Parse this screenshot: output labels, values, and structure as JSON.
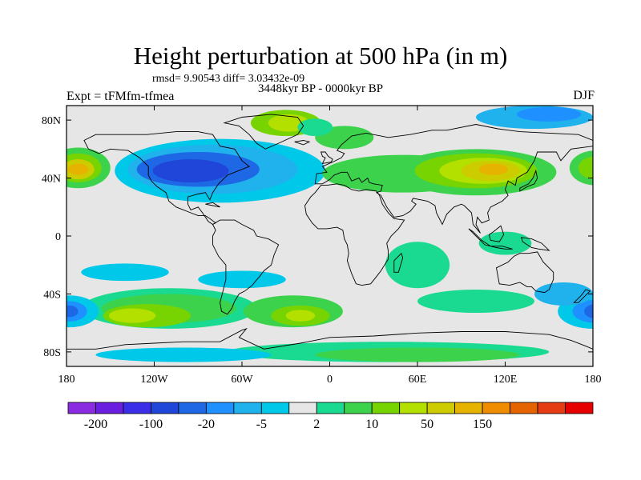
{
  "chart_data": {
    "type": "heatmap",
    "title": "Height perturbation at 500 hPa (in m)",
    "stats_label": "rmsd= 9.90543 diff= 3.03432e-09",
    "period_label": "3448kyr BP - 0000kyr BP",
    "experiment_label": "Expt = tFMfm-tfmea",
    "season_label": "DJF",
    "x_range": [
      -180,
      180
    ],
    "y_range": [
      -90,
      90
    ],
    "x_ticks": [
      {
        "value": -180,
        "label": "180"
      },
      {
        "value": -120,
        "label": "120W"
      },
      {
        "value": -60,
        "label": "60W"
      },
      {
        "value": 0,
        "label": "0"
      },
      {
        "value": 60,
        "label": "60E"
      },
      {
        "value": 120,
        "label": "120E"
      },
      {
        "value": 180,
        "label": "180"
      }
    ],
    "y_ticks": [
      {
        "value": 80,
        "label": "80N"
      },
      {
        "value": 40,
        "label": "40N"
      },
      {
        "value": 0,
        "label": "0"
      },
      {
        "value": -40,
        "label": "40S"
      },
      {
        "value": -80,
        "label": "80S"
      }
    ],
    "colorbar": {
      "colors": [
        "#8a2be2",
        "#6a1fe0",
        "#3a2ee8",
        "#1f46d8",
        "#1e68e6",
        "#1e90ff",
        "#1fb2ec",
        "#00c8e8",
        "#e6e6e6",
        "#1ad990",
        "#3cd24c",
        "#78d400",
        "#b4e000",
        "#cccc00",
        "#e6b400",
        "#f08c00",
        "#e66400",
        "#e63c14",
        "#e60000"
      ],
      "tick_labels": [
        {
          "boundary": 1,
          "label": "-200"
        },
        {
          "boundary": 3,
          "label": "-100"
        },
        {
          "boundary": 5,
          "label": "-20"
        },
        {
          "boundary": 7,
          "label": "-5"
        },
        {
          "boundary": 9,
          "label": "2"
        },
        {
          "boundary": 11,
          "label": "10"
        },
        {
          "boundary": 13,
          "label": "50"
        },
        {
          "boundary": 15,
          "label": "150"
        }
      ]
    },
    "field_features": [
      {
        "name": "north-pacific-high",
        "lon": -160,
        "lat": 45,
        "value": 60
      },
      {
        "name": "north-america-low",
        "lon": -95,
        "lat": 45,
        "value": -60
      },
      {
        "name": "north-atlantic-low",
        "lon": -45,
        "lat": 50,
        "value": -30
      },
      {
        "name": "greenland-high",
        "lon": -35,
        "lat": 80,
        "value": 15
      },
      {
        "name": "asia-high",
        "lon": 100,
        "lat": 45,
        "value": 40
      },
      {
        "name": "north-pacific-west-low",
        "lon": 150,
        "lat": 80,
        "value": -15
      },
      {
        "name": "south-pacific-high",
        "lon": -120,
        "lat": -55,
        "value": 25
      },
      {
        "name": "south-atlantic-high",
        "lon": -20,
        "lat": -55,
        "value": 25
      },
      {
        "name": "south-indian-low",
        "lon": 170,
        "lat": -55,
        "value": -35
      },
      {
        "name": "south-pacific-low",
        "lon": -170,
        "lat": -55,
        "value": -30
      },
      {
        "name": "antarctic-high",
        "lon": 50,
        "lat": -80,
        "value": 10
      }
    ]
  }
}
